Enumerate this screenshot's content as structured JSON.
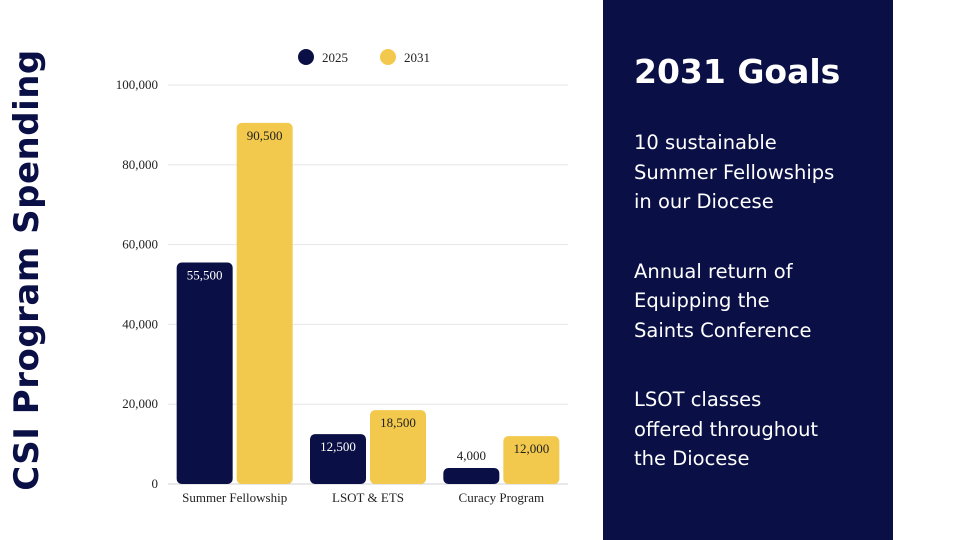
{
  "page_title": "CSI Program Spending",
  "goals": {
    "title": "2031 Goals",
    "items": [
      [
        "10 sustainable",
        "Summer Fellowships",
        "in our Diocese"
      ],
      [
        "Annual return of",
        "Equipping the",
        "Saints Conference"
      ],
      [
        "LSOT classes",
        "offered throughout",
        "the Diocese"
      ]
    ]
  },
  "chart_data": {
    "type": "bar",
    "title": "CSI Program Spending",
    "xlabel": "",
    "ylabel": "",
    "categories": [
      "Summer Fellowship",
      "LSOT & ETS",
      "Curacy Program"
    ],
    "series": [
      {
        "name": "2025",
        "color": "#0a1045",
        "values": [
          55500,
          12500,
          4000
        ],
        "labels": [
          "55,500",
          "12,500",
          "4,000"
        ]
      },
      {
        "name": "2031",
        "color": "#f2c94c",
        "values": [
          90500,
          18500,
          12000
        ],
        "labels": [
          "90,500",
          "18,500",
          "12,000"
        ]
      }
    ],
    "ylim": [
      0,
      100000
    ],
    "yticks": [
      0,
      20000,
      40000,
      60000,
      80000,
      100000
    ],
    "ytick_labels": [
      "0",
      "20,000",
      "40,000",
      "60,000",
      "80,000",
      "100,000"
    ],
    "grid": true,
    "legend": "top"
  }
}
